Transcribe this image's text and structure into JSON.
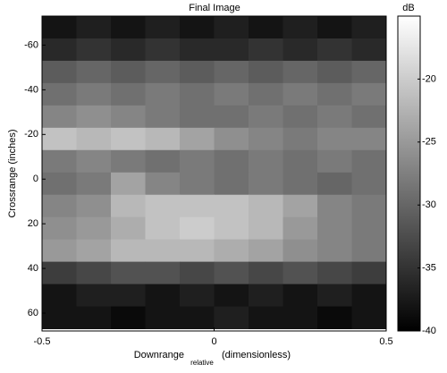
{
  "chart_data": {
    "type": "heatmap",
    "title": "Final Image",
    "x_label": "Downrange",
    "x_label_subscript": "relative",
    "x_label_suffix": "(dimensionless)",
    "y_label": "Crossrange (inches)",
    "x": [
      -0.45,
      -0.35,
      -0.25,
      -0.15,
      -0.05,
      0.05,
      0.15,
      0.25,
      0.35,
      0.45
    ],
    "y": [
      -68,
      -58,
      -48,
      -38,
      -28,
      -18,
      -8,
      2,
      12,
      22,
      32,
      42,
      52,
      62
    ],
    "z": [
      [
        -38,
        -37,
        -38,
        -37,
        -38,
        -37,
        -38,
        -37,
        -38,
        -37
      ],
      [
        -36,
        -35,
        -36,
        -35,
        -36,
        -36,
        -35,
        -36,
        -35,
        -36
      ],
      [
        -31,
        -30,
        -31,
        -30,
        -31,
        -30,
        -31,
        -30,
        -31,
        -30
      ],
      [
        -29,
        -28,
        -29,
        -28,
        -29,
        -28,
        -29,
        -28,
        -29,
        -28
      ],
      [
        -27,
        -26,
        -27,
        -28,
        -29,
        -29,
        -28,
        -29,
        -28,
        -29
      ],
      [
        -21,
        -22,
        -21,
        -22,
        -24,
        -26,
        -27,
        -28,
        -27,
        -27
      ],
      [
        -28,
        -27,
        -28,
        -29,
        -28,
        -29,
        -28,
        -29,
        -28,
        -29
      ],
      [
        -29,
        -28,
        -24,
        -27,
        -28,
        -29,
        -28,
        -29,
        -30,
        -29
      ],
      [
        -27,
        -26,
        -22,
        -21,
        -21,
        -21,
        -22,
        -24,
        -27,
        -28
      ],
      [
        -26,
        -25,
        -23,
        -21,
        -20,
        -21,
        -22,
        -25,
        -27,
        -28
      ],
      [
        -25,
        -24,
        -22,
        -22,
        -22,
        -23,
        -24,
        -26,
        -27,
        -28
      ],
      [
        -34,
        -33,
        -32,
        -32,
        -33,
        -32,
        -33,
        -32,
        -33,
        -34
      ],
      [
        -38,
        -37,
        -37,
        -38,
        -37,
        -38,
        -37,
        -38,
        -37,
        -38
      ],
      [
        -38,
        -38,
        -39,
        -38,
        -38,
        -37,
        -38,
        -38,
        -39,
        -38
      ]
    ],
    "xlim": [
      -0.5,
      0.5
    ],
    "xticks": [
      -0.5,
      0,
      0.5
    ],
    "ylim": [
      -73,
      68
    ],
    "yticks": [
      -60,
      -40,
      -20,
      0,
      20,
      40,
      60
    ],
    "y_reversed": true,
    "colormap": "gray",
    "clim": [
      -40,
      -15
    ],
    "colorbar_label": "dB",
    "colorbar_ticks": [
      -20,
      -25,
      -30,
      -35,
      -40
    ]
  }
}
